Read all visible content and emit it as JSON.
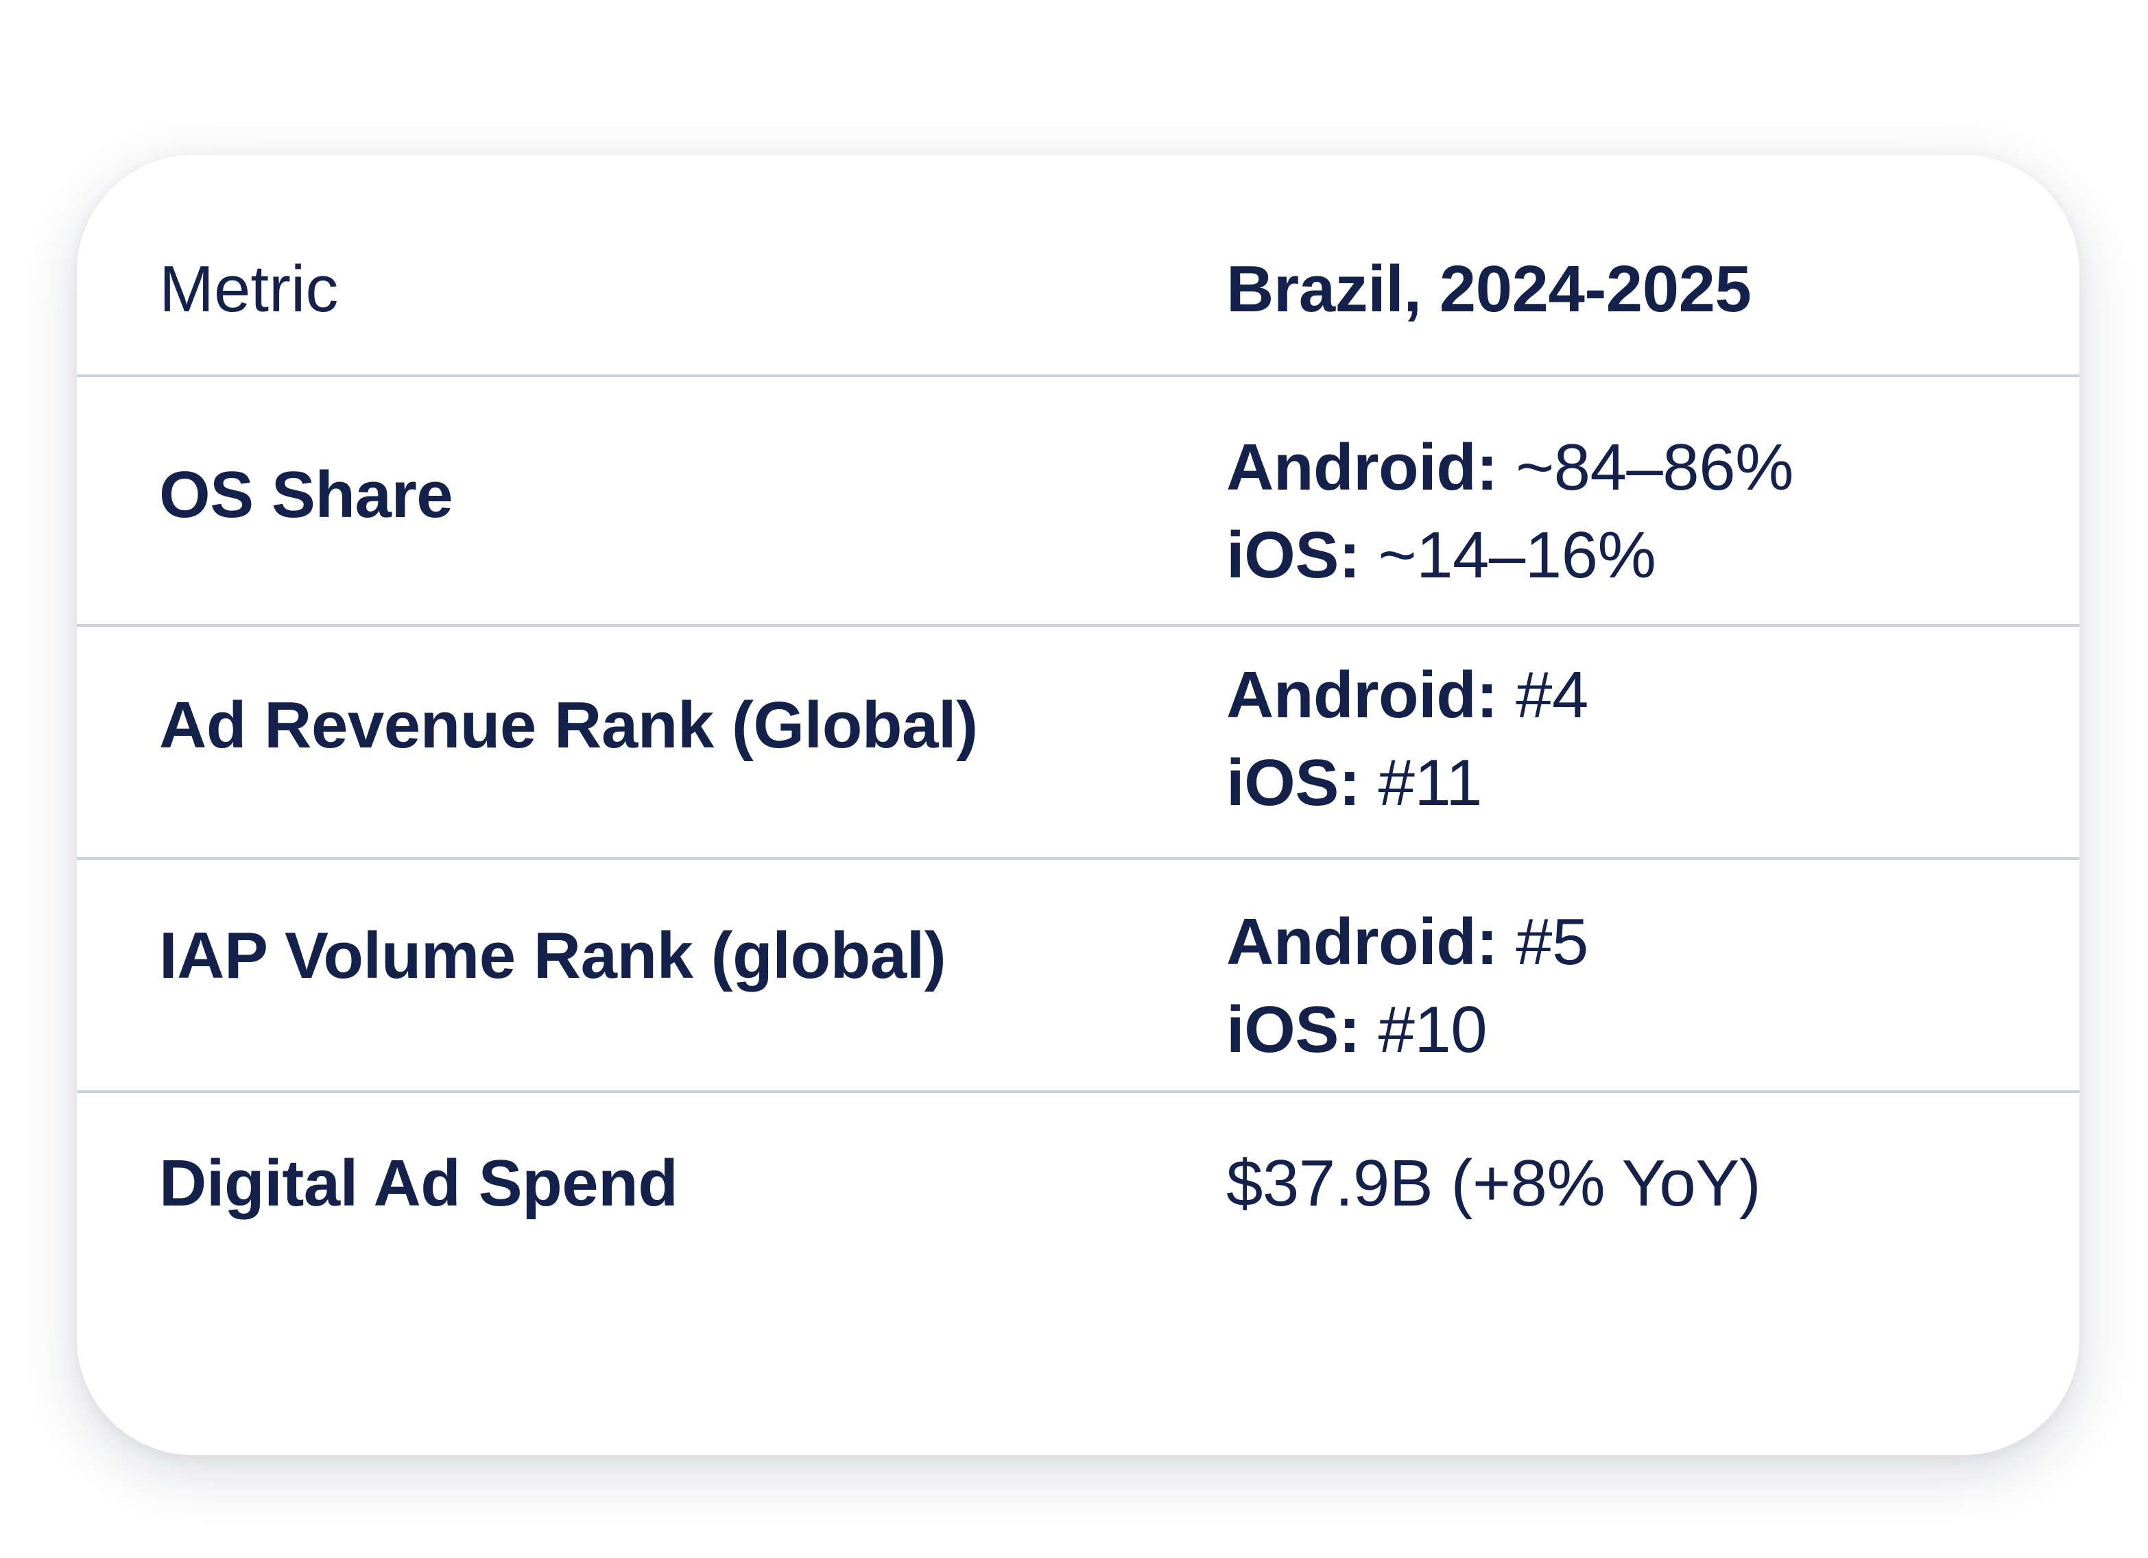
{
  "table": {
    "header": {
      "metric": "Metric",
      "value": "Brazil, 2024-2025"
    },
    "rows": [
      {
        "metric": "OS Share",
        "values": [
          {
            "key": "Android:",
            "val": " ~84–86%"
          },
          {
            "key": "iOS:",
            "val": " ~14–16%"
          }
        ]
      },
      {
        "metric": "Ad Revenue Rank (Global)",
        "values": [
          {
            "key": "Android:",
            "val": " #4"
          },
          {
            "key": "iOS:",
            "val": " #11"
          }
        ]
      },
      {
        "metric": "IAP Volume Rank (global)",
        "values": [
          {
            "key": "Android:",
            "val": " #5"
          },
          {
            "key": "iOS:",
            "val": " #10"
          }
        ]
      },
      {
        "metric": "Digital Ad Spend",
        "single": "$37.9B (+8% YoY)"
      }
    ]
  },
  "colors": {
    "text": "#14214a",
    "divider": "#cdd3de",
    "card": "#ffffff"
  }
}
